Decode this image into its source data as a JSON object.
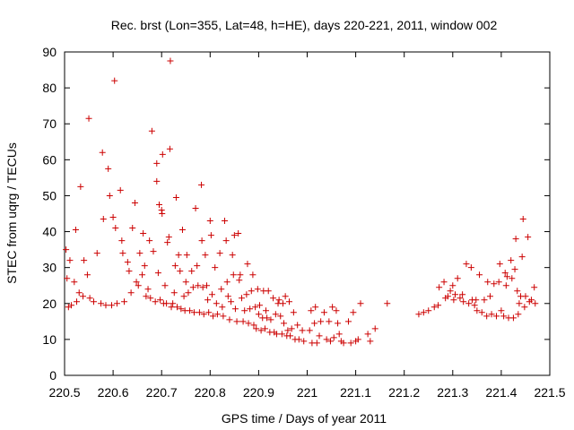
{
  "chart_data": {
    "type": "scatter",
    "title": "Rec. brst (Lon=355, Lat=48, h=HE), days 220-221, 2011, window 002",
    "xlabel": "GPS time / Days of year 2011",
    "ylabel": "STEC from uqrg / TECUs",
    "xlim": [
      220.5,
      221.5
    ],
    "ylim": [
      0,
      90
    ],
    "x_ticks": [
      220.5,
      220.6,
      220.7,
      220.8,
      220.9,
      221.0,
      221.1,
      221.2,
      221.3,
      221.4,
      221.5
    ],
    "x_tick_labels": [
      "220.5",
      "220.6",
      "220.7",
      "220.8",
      "220.9",
      "221",
      "221.1",
      "221.2",
      "221.3",
      "221.4",
      "221.5"
    ],
    "y_ticks": [
      0,
      10,
      20,
      30,
      40,
      50,
      60,
      70,
      80,
      90
    ],
    "y_tick_labels": [
      "0",
      "10",
      "20",
      "30",
      "40",
      "50",
      "60",
      "70",
      "80",
      "90"
    ],
    "grid": false,
    "marker": "+",
    "color": "#cc0000",
    "series": [
      {
        "name": "STEC",
        "points": [
          [
            220.503,
            35
          ],
          [
            220.505,
            27
          ],
          [
            220.508,
            19
          ],
          [
            220.511,
            32
          ],
          [
            220.514,
            19.5
          ],
          [
            220.52,
            26
          ],
          [
            220.523,
            40.5
          ],
          [
            220.525,
            20.5
          ],
          [
            220.53,
            23
          ],
          [
            220.533,
            52.5
          ],
          [
            220.538,
            22
          ],
          [
            220.54,
            32
          ],
          [
            220.547,
            28
          ],
          [
            220.55,
            71.5
          ],
          [
            220.552,
            21.5
          ],
          [
            220.56,
            20.5
          ],
          [
            220.567,
            34
          ],
          [
            220.575,
            20
          ],
          [
            220.578,
            62
          ],
          [
            220.58,
            43.5
          ],
          [
            220.585,
            19.5
          ],
          [
            220.59,
            57.5
          ],
          [
            220.593,
            50
          ],
          [
            220.597,
            19.5
          ],
          [
            220.6,
            44
          ],
          [
            220.603,
            82
          ],
          [
            220.605,
            41
          ],
          [
            220.608,
            20
          ],
          [
            220.615,
            51.5
          ],
          [
            220.618,
            37.5
          ],
          [
            220.62,
            34
          ],
          [
            220.623,
            20.5
          ],
          [
            220.63,
            31.5
          ],
          [
            220.633,
            29
          ],
          [
            220.637,
            23
          ],
          [
            220.64,
            41
          ],
          [
            220.645,
            48
          ],
          [
            220.648,
            26
          ],
          [
            220.652,
            25
          ],
          [
            220.655,
            34
          ],
          [
            220.66,
            28
          ],
          [
            220.662,
            39.5
          ],
          [
            220.665,
            30.5
          ],
          [
            220.668,
            22
          ],
          [
            220.672,
            24
          ],
          [
            220.675,
            37.5
          ],
          [
            220.677,
            21.5
          ],
          [
            220.68,
            68
          ],
          [
            220.683,
            34.5
          ],
          [
            220.687,
            20.5
          ],
          [
            220.69,
            54
          ],
          [
            220.69,
            59
          ],
          [
            220.693,
            28.5
          ],
          [
            220.695,
            47.5
          ],
          [
            220.697,
            21
          ],
          [
            220.7,
            46
          ],
          [
            220.701,
            45
          ],
          [
            220.702,
            61.5
          ],
          [
            220.704,
            20
          ],
          [
            220.707,
            25
          ],
          [
            220.71,
            20
          ],
          [
            220.712,
            37
          ],
          [
            220.715,
            38.5
          ],
          [
            220.717,
            63
          ],
          [
            220.718,
            87.5
          ],
          [
            220.72,
            19
          ],
          [
            220.723,
            20
          ],
          [
            220.726,
            23
          ],
          [
            220.728,
            30.5
          ],
          [
            220.73,
            49.5
          ],
          [
            220.732,
            19
          ],
          [
            220.735,
            33.5
          ],
          [
            220.738,
            29
          ],
          [
            220.74,
            18.5
          ],
          [
            220.743,
            40.5
          ],
          [
            220.746,
            22
          ],
          [
            220.748,
            18
          ],
          [
            220.75,
            26
          ],
          [
            220.752,
            33.5
          ],
          [
            220.755,
            23
          ],
          [
            220.758,
            18
          ],
          [
            220.762,
            29
          ],
          [
            220.765,
            24.5
          ],
          [
            220.767,
            17.5
          ],
          [
            220.77,
            46.5
          ],
          [
            220.773,
            30.5
          ],
          [
            220.775,
            25
          ],
          [
            220.778,
            17.5
          ],
          [
            220.782,
            53
          ],
          [
            220.783,
            37.5
          ],
          [
            220.785,
            24.5
          ],
          [
            220.787,
            17
          ],
          [
            220.79,
            33.5
          ],
          [
            220.793,
            25
          ],
          [
            220.795,
            21
          ],
          [
            220.797,
            17.5
          ],
          [
            220.8,
            43
          ],
          [
            220.802,
            39
          ],
          [
            220.804,
            22.5
          ],
          [
            220.806,
            16.5
          ],
          [
            220.81,
            30
          ],
          [
            220.813,
            20
          ],
          [
            220.815,
            17
          ],
          [
            220.82,
            34
          ],
          [
            220.823,
            24
          ],
          [
            220.825,
            19
          ],
          [
            220.827,
            16.5
          ],
          [
            220.83,
            43
          ],
          [
            220.833,
            37.5
          ],
          [
            220.835,
            26
          ],
          [
            220.837,
            22
          ],
          [
            220.84,
            15.5
          ],
          [
            220.843,
            20.5
          ],
          [
            220.846,
            33.5
          ],
          [
            220.848,
            28
          ],
          [
            220.85,
            39
          ],
          [
            220.852,
            18.5
          ],
          [
            220.855,
            15
          ],
          [
            220.858,
            39.5
          ],
          [
            220.86,
            26.5
          ],
          [
            220.862,
            28
          ],
          [
            220.865,
            21.5
          ],
          [
            220.868,
            15
          ],
          [
            220.871,
            18
          ],
          [
            220.875,
            22.5
          ],
          [
            220.877,
            31
          ],
          [
            220.879,
            14.5
          ],
          [
            220.882,
            18.5
          ],
          [
            220.885,
            23.5
          ],
          [
            220.888,
            28
          ],
          [
            220.89,
            14
          ],
          [
            220.893,
            19
          ],
          [
            220.895,
            13
          ],
          [
            220.898,
            24
          ],
          [
            220.9,
            17
          ],
          [
            220.902,
            19.5
          ],
          [
            220.905,
            12.5
          ],
          [
            220.908,
            16
          ],
          [
            220.91,
            23.5
          ],
          [
            220.913,
            13
          ],
          [
            220.915,
            18
          ],
          [
            220.917,
            16
          ],
          [
            220.92,
            23.5
          ],
          [
            220.923,
            12
          ],
          [
            220.925,
            15.5
          ],
          [
            220.93,
            21.5
          ],
          [
            220.932,
            12
          ],
          [
            220.935,
            17
          ],
          [
            220.937,
            11.5
          ],
          [
            220.94,
            20
          ],
          [
            220.942,
            21
          ],
          [
            220.945,
            16.5
          ],
          [
            220.948,
            11.5
          ],
          [
            220.95,
            20
          ],
          [
            220.952,
            14.5
          ],
          [
            220.955,
            22
          ],
          [
            220.958,
            11
          ],
          [
            220.96,
            12.5
          ],
          [
            220.963,
            20.5
          ],
          [
            220.965,
            11
          ],
          [
            220.968,
            13
          ],
          [
            220.972,
            17.5
          ],
          [
            220.975,
            10
          ],
          [
            220.98,
            14
          ],
          [
            220.983,
            10
          ],
          [
            220.99,
            12.5
          ],
          [
            220.993,
            9.5
          ],
          [
            221.005,
            12.5
          ],
          [
            221.008,
            18
          ],
          [
            221.01,
            9
          ],
          [
            221.015,
            14.5
          ],
          [
            221.017,
            19
          ],
          [
            221.02,
            9
          ],
          [
            221.025,
            11
          ],
          [
            221.028,
            15
          ],
          [
            221.035,
            17.5
          ],
          [
            221.04,
            10
          ],
          [
            221.045,
            15
          ],
          [
            221.048,
            9.5
          ],
          [
            221.052,
            19
          ],
          [
            221.055,
            10.5
          ],
          [
            221.06,
            18
          ],
          [
            221.063,
            14.5
          ],
          [
            221.066,
            11.5
          ],
          [
            221.07,
            9.5
          ],
          [
            221.075,
            9
          ],
          [
            221.085,
            15
          ],
          [
            221.09,
            9
          ],
          [
            221.095,
            17.5
          ],
          [
            221.1,
            9.5
          ],
          [
            221.105,
            10
          ],
          [
            221.11,
            20
          ],
          [
            221.125,
            11.5
          ],
          [
            221.13,
            9.5
          ],
          [
            221.14,
            13
          ],
          [
            221.165,
            20
          ],
          [
            221.23,
            17
          ],
          [
            221.24,
            17.5
          ],
          [
            221.25,
            18
          ],
          [
            221.262,
            19
          ],
          [
            221.27,
            19.5
          ],
          [
            221.272,
            24.5
          ],
          [
            221.282,
            26
          ],
          [
            221.285,
            21.5
          ],
          [
            221.29,
            22
          ],
          [
            221.295,
            23.5
          ],
          [
            221.3,
            25
          ],
          [
            221.302,
            21
          ],
          [
            221.305,
            22.5
          ],
          [
            221.31,
            27
          ],
          [
            221.315,
            21.5
          ],
          [
            221.32,
            22.5
          ],
          [
            221.322,
            20.5
          ],
          [
            221.328,
            31
          ],
          [
            221.333,
            20
          ],
          [
            221.338,
            30
          ],
          [
            221.34,
            21
          ],
          [
            221.345,
            19.5
          ],
          [
            221.348,
            21
          ],
          [
            221.35,
            18
          ],
          [
            221.355,
            28
          ],
          [
            221.36,
            17.5
          ],
          [
            221.365,
            21
          ],
          [
            221.37,
            16.5
          ],
          [
            221.372,
            26
          ],
          [
            221.377,
            22
          ],
          [
            221.38,
            17
          ],
          [
            221.385,
            25.5
          ],
          [
            221.39,
            16.5
          ],
          [
            221.395,
            26
          ],
          [
            221.397,
            31
          ],
          [
            221.4,
            18
          ],
          [
            221.405,
            16.5
          ],
          [
            221.408,
            28.5
          ],
          [
            221.41,
            25
          ],
          [
            221.412,
            27.5
          ],
          [
            221.415,
            16
          ],
          [
            221.42,
            32
          ],
          [
            221.422,
            27
          ],
          [
            221.425,
            16
          ],
          [
            221.428,
            29.5
          ],
          [
            221.43,
            38
          ],
          [
            221.433,
            23.5
          ],
          [
            221.435,
            17
          ],
          [
            221.437,
            20
          ],
          [
            221.44,
            22
          ],
          [
            221.443,
            33
          ],
          [
            221.445,
            43.5
          ],
          [
            221.448,
            19
          ],
          [
            221.45,
            22
          ],
          [
            221.455,
            38.5
          ],
          [
            221.458,
            20.5
          ],
          [
            221.462,
            21
          ],
          [
            221.468,
            24.5
          ],
          [
            221.47,
            20
          ]
        ]
      }
    ]
  }
}
